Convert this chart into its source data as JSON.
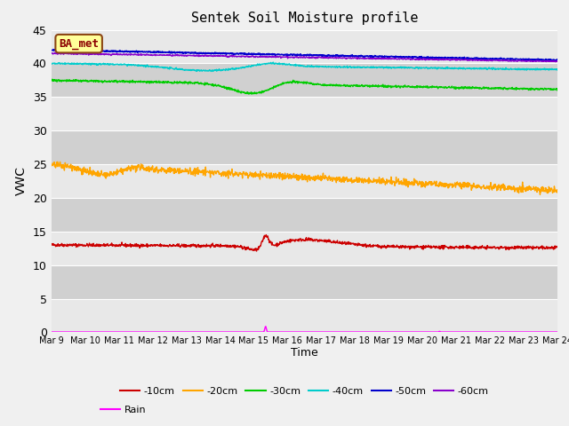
{
  "title": "Sentek Soil Moisture profile",
  "xlabel": "Time",
  "ylabel": "VWC",
  "annotation": "BA_met",
  "ylim": [
    0,
    45
  ],
  "series": {
    "10cm": {
      "color": "#cc0000",
      "label": "-10cm"
    },
    "20cm": {
      "color": "#ffa500",
      "label": "-20cm"
    },
    "30cm": {
      "color": "#00cc00",
      "label": "-30cm"
    },
    "40cm": {
      "color": "#00cccc",
      "label": "-40cm"
    },
    "50cm": {
      "color": "#0000cc",
      "label": "-50cm"
    },
    "60cm": {
      "color": "#8800cc",
      "label": "-60cm"
    },
    "rain": {
      "color": "#ff00ff",
      "label": "Rain"
    }
  },
  "tick_labels": [
    "Mar 9",
    "Mar 10",
    "Mar 11",
    "Mar 12",
    "Mar 13",
    "Mar 14",
    "Mar 15",
    "Mar 16",
    "Mar 17",
    "Mar 18",
    "Mar 19",
    "Mar 20",
    "Mar 21",
    "Mar 22",
    "Mar 23",
    "Mar 24"
  ],
  "n_points": 1500,
  "band_colors": [
    "#e8e8e8",
    "#d0d0d0"
  ],
  "fig_facecolor": "#f0f0f0"
}
